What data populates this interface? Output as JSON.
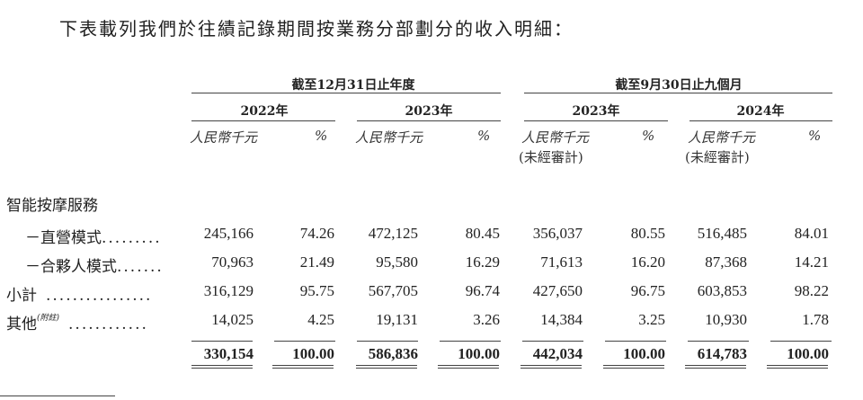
{
  "title": "下表載列我們於往績記錄期間按業務分部劃分的收入明細：",
  "groups": [
    {
      "label": "截至12月31日止年度"
    },
    {
      "label": "截至9月30日止九個月"
    }
  ],
  "years": [
    "2022年",
    "2023年",
    "2023年",
    "2024年"
  ],
  "unit_label": "人民幣千元",
  "percent_label": "%",
  "unaudited_label": "(未經審計)",
  "section_label": "智能按摩服務",
  "rows": [
    {
      "label": "－直營模式",
      "dots": ".........",
      "values": [
        "245,166",
        "74.26",
        "472,125",
        "80.45",
        "356,037",
        "80.55",
        "516,485",
        "84.01"
      ]
    },
    {
      "label": "－合夥人模式",
      "dots": ".......",
      "values": [
        "70,963",
        "21.49",
        "95,580",
        "16.29",
        "71,613",
        "16.20",
        "87,368",
        "14.21"
      ]
    },
    {
      "label": "小計",
      "dots": "................",
      "values": [
        "316,129",
        "95.75",
        "567,705",
        "96.74",
        "427,650",
        "96.75",
        "603,853",
        "98.22"
      ]
    },
    {
      "label": "其他",
      "note": "(附註)",
      "dots": "............",
      "values": [
        "14,025",
        "4.25",
        "19,131",
        "3.26",
        "14,384",
        "3.25",
        "10,930",
        "1.78"
      ]
    }
  ],
  "total": {
    "values": [
      "330,154",
      "100.00",
      "586,836",
      "100.00",
      "442,034",
      "100.00",
      "614,783",
      "100.00"
    ]
  }
}
